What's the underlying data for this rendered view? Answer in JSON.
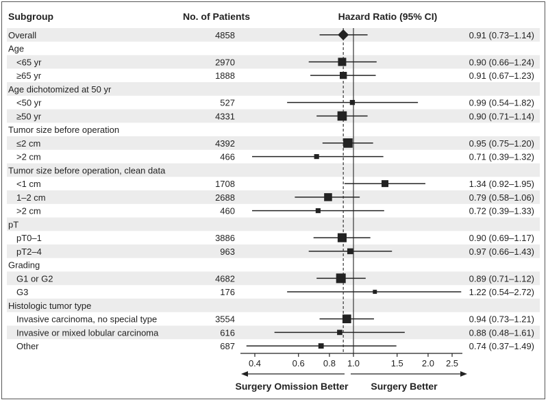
{
  "headers": {
    "subgroup": "Subgroup",
    "patients": "No. of Patients",
    "hr": "Hazard Ratio (95% CI)"
  },
  "directions": {
    "left": "Surgery Omission Better",
    "right": "Surgery Better"
  },
  "colors": {
    "marker": "#222222",
    "stripe": "#ececec",
    "dashed_line": "#444444",
    "reference_line": "#444444"
  },
  "chart_data": {
    "type": "forest",
    "x_scale": "log",
    "xlim": [
      0.35,
      2.75
    ],
    "x_ticks": [
      0.4,
      0.6,
      0.8,
      1.0,
      1.5,
      2.0,
      2.5
    ],
    "x_tick_labels": [
      "0.4",
      "0.6",
      "0.8",
      "1.0",
      "1.5",
      "2.0",
      "2.5"
    ],
    "reference_line": 1.0,
    "overall_line": 0.91,
    "rows": [
      {
        "label": "Overall",
        "kind": "overall",
        "n": "4858",
        "hr": 0.91,
        "lo": 0.73,
        "hi": 1.14,
        "ci": "0.91 (0.73–1.14)"
      },
      {
        "label": "Age",
        "kind": "group"
      },
      {
        "label": "<65 yr",
        "kind": "sub",
        "n": "2970",
        "hr": 0.9,
        "lo": 0.66,
        "hi": 1.24,
        "ci": "0.90 (0.66–1.24)"
      },
      {
        "label": "≥65 yr",
        "kind": "sub",
        "n": "1888",
        "hr": 0.91,
        "lo": 0.67,
        "hi": 1.23,
        "ci": "0.91 (0.67–1.23)"
      },
      {
        "label": "Age dichotomized at 50 yr",
        "kind": "group"
      },
      {
        "label": "<50 yr",
        "kind": "sub",
        "n": "527",
        "hr": 0.99,
        "lo": 0.54,
        "hi": 1.82,
        "ci": "0.99 (0.54–1.82)"
      },
      {
        "label": "≥50 yr",
        "kind": "sub",
        "n": "4331",
        "hr": 0.9,
        "lo": 0.71,
        "hi": 1.14,
        "ci": "0.90 (0.71–1.14)"
      },
      {
        "label": "Tumor size before operation",
        "kind": "group"
      },
      {
        "label": "≤2 cm",
        "kind": "sub",
        "n": "4392",
        "hr": 0.95,
        "lo": 0.75,
        "hi": 1.2,
        "ci": "0.95 (0.75–1.20)"
      },
      {
        "label": ">2 cm",
        "kind": "sub",
        "n": "466",
        "hr": 0.71,
        "lo": 0.39,
        "hi": 1.32,
        "ci": "0.71 (0.39–1.32)"
      },
      {
        "label": "Tumor size before operation, clean data",
        "kind": "group"
      },
      {
        "label": "<1 cm",
        "kind": "sub",
        "n": "1708",
        "hr": 1.34,
        "lo": 0.92,
        "hi": 1.95,
        "ci": "1.34 (0.92–1.95)"
      },
      {
        "label": "1–2 cm",
        "kind": "sub",
        "n": "2688",
        "hr": 0.79,
        "lo": 0.58,
        "hi": 1.06,
        "ci": "0.79 (0.58–1.06)"
      },
      {
        "label": ">2 cm",
        "kind": "sub",
        "n": "460",
        "hr": 0.72,
        "lo": 0.39,
        "hi": 1.33,
        "ci": "0.72 (0.39–1.33)"
      },
      {
        "label": "pT",
        "kind": "group"
      },
      {
        "label": "pT0–1",
        "kind": "sub",
        "n": "3886",
        "hr": 0.9,
        "lo": 0.69,
        "hi": 1.17,
        "ci": "0.90 (0.69–1.17)"
      },
      {
        "label": "pT2–4",
        "kind": "sub",
        "n": "963",
        "hr": 0.97,
        "lo": 0.66,
        "hi": 1.43,
        "ci": "0.97 (0.66–1.43)"
      },
      {
        "label": "Grading",
        "kind": "group"
      },
      {
        "label": "G1 or G2",
        "kind": "sub",
        "n": "4682",
        "hr": 0.89,
        "lo": 0.71,
        "hi": 1.12,
        "ci": "0.89 (0.71–1.12)"
      },
      {
        "label": "G3",
        "kind": "sub",
        "n": "176",
        "hr": 1.22,
        "lo": 0.54,
        "hi": 2.72,
        "ci": "1.22 (0.54–2.72)"
      },
      {
        "label": "Histologic tumor type",
        "kind": "group"
      },
      {
        "label": "Invasive carcinoma, no special type",
        "kind": "sub",
        "n": "3554",
        "hr": 0.94,
        "lo": 0.73,
        "hi": 1.21,
        "ci": "0.94 (0.73–1.21)"
      },
      {
        "label": "Invasive or mixed lobular carcinoma",
        "kind": "sub",
        "n": "616",
        "hr": 0.88,
        "lo": 0.48,
        "hi": 1.61,
        "ci": "0.88 (0.48–1.61)"
      },
      {
        "label": "Other",
        "kind": "sub",
        "n": "687",
        "hr": 0.74,
        "lo": 0.37,
        "hi": 1.49,
        "ci": "0.74 (0.37–1.49)"
      }
    ]
  }
}
